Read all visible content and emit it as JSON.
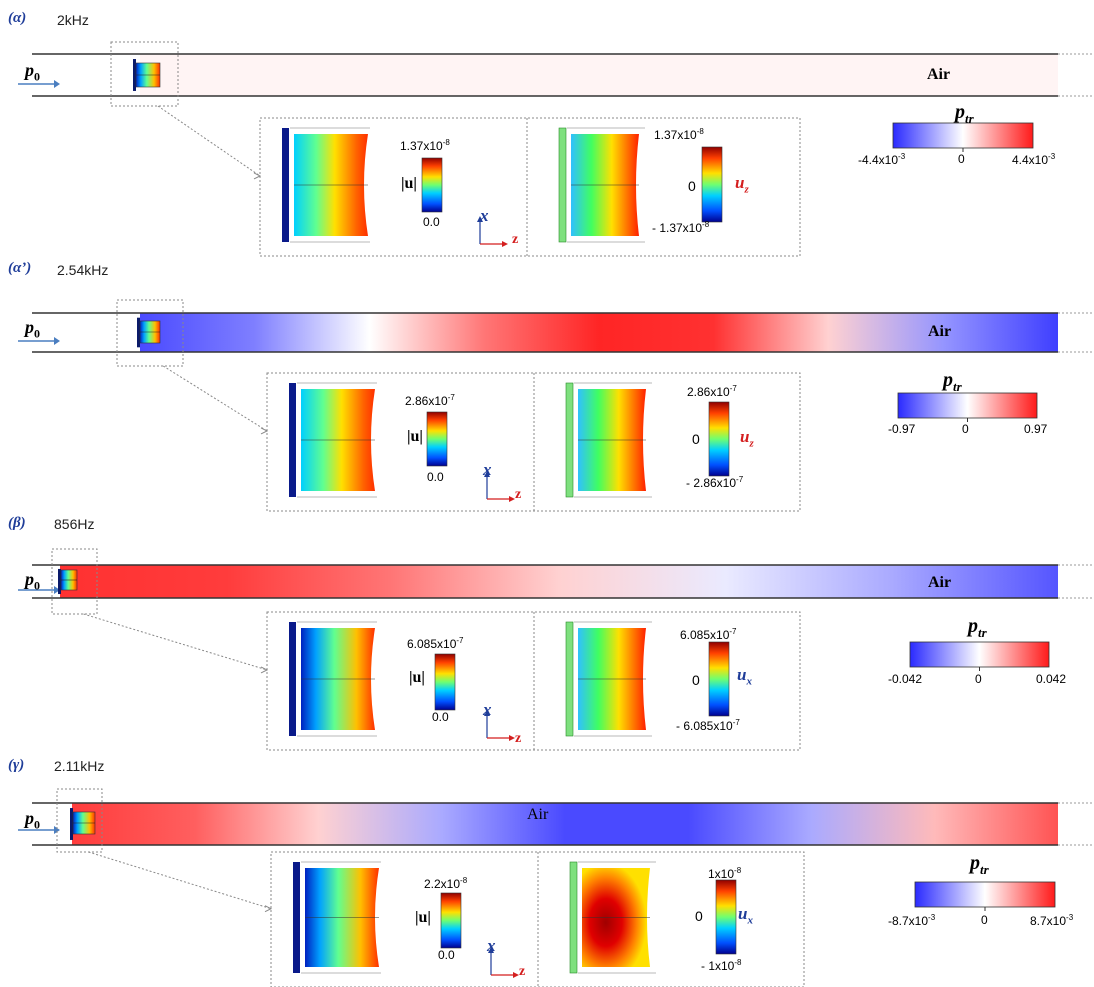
{
  "panels": [
    {
      "id": "a",
      "label": "(α)",
      "freq": "2kHz",
      "input_label": "p",
      "input_sub": "0",
      "medium": "Air",
      "medium_style": "bold",
      "ptr": {
        "label": "p",
        "sub": "tr",
        "min": "-4.4x10",
        "min_exp": "-3",
        "mid": "0",
        "max": "4.4x10",
        "max_exp": "-3"
      },
      "inset_left": {
        "max": "1.37x10",
        "max_exp": "-8",
        "min": "0.0",
        "label": "|u|"
      },
      "inset_right": {
        "max": "1.37x10",
        "max_exp": "-8",
        "mid": "0",
        "min": "- 1.37x10",
        "min_exp": "-8",
        "comp": "u",
        "comp_sub": "z",
        "comp_color": "#d41f1f"
      },
      "field": [
        0.05,
        0.05
      ]
    },
    {
      "id": "a2",
      "label": "(α’)",
      "freq": "2.54kHz",
      "input_label": "p",
      "input_sub": "0",
      "medium": "Air",
      "medium_style": "bold",
      "ptr": {
        "label": "p",
        "sub": "tr",
        "min": "-0.97",
        "mid": "0",
        "max": "0.97"
      },
      "inset_left": {
        "max": "2.86x10",
        "max_exp": "-7",
        "min": "0.0",
        "label": "|u|"
      },
      "inset_right": {
        "max": "2.86x10",
        "max_exp": "-7",
        "mid": "0",
        "min": "- 2.86x10",
        "min_exp": "-7",
        "comp": "u",
        "comp_sub": "z",
        "comp_color": "#d41f1f"
      },
      "field": [
        -0.85,
        -0.6,
        0.0,
        0.6,
        0.95,
        0.9,
        0.2,
        -0.5,
        -0.9
      ]
    },
    {
      "id": "b",
      "label": "(β)",
      "freq": "856Hz",
      "input_label": "p",
      "input_sub": "0",
      "medium": "Air",
      "medium_style": "bold",
      "ptr": {
        "label": "p",
        "sub": "tr",
        "min": "-0.042",
        "mid": "0",
        "max": "0.042"
      },
      "inset_left": {
        "max": "6.085x10",
        "max_exp": "-7",
        "min": "0.0",
        "label": "|u|"
      },
      "inset_right": {
        "max": "6.085x10",
        "max_exp": "-7",
        "mid": "0",
        "min": "- 6.085x10",
        "min_exp": "-7",
        "comp": "u",
        "comp_sub": "x",
        "comp_color": "#1f3d99"
      },
      "field": [
        0.9,
        0.85,
        0.6,
        0.2,
        -0.1,
        -0.4,
        -0.8
      ]
    },
    {
      "id": "g",
      "label": "(γ)",
      "freq": "2.11kHz",
      "input_label": "p",
      "input_sub": "0",
      "medium": "Air",
      "medium_style": "plain",
      "ptr": {
        "label": "p",
        "sub": "tr",
        "min": "-8.7x10",
        "min_exp": "-3",
        "mid": "0",
        "max": "8.7x10",
        "max_exp": "-3"
      },
      "inset_left": {
        "max": "2.2x10",
        "max_exp": "-8",
        "min": "0.0",
        "label": "|u|"
      },
      "inset_right": {
        "max": "1x10",
        "max_exp": "-8",
        "mid": "0",
        "min": "- 1x10",
        "min_exp": "-8",
        "comp": "u",
        "comp_sub": "x",
        "comp_color": "#1f3d99"
      },
      "field": [
        0.85,
        0.7,
        0.2,
        -0.4,
        -0.85,
        -0.85,
        -0.4,
        0.3,
        0.75
      ]
    }
  ],
  "axes": {
    "x": "x",
    "z": "z"
  },
  "colors": {
    "red": "#ee1c1c",
    "blue": "#2d2df0",
    "white": "#ffffff",
    "grid": "#999999"
  }
}
